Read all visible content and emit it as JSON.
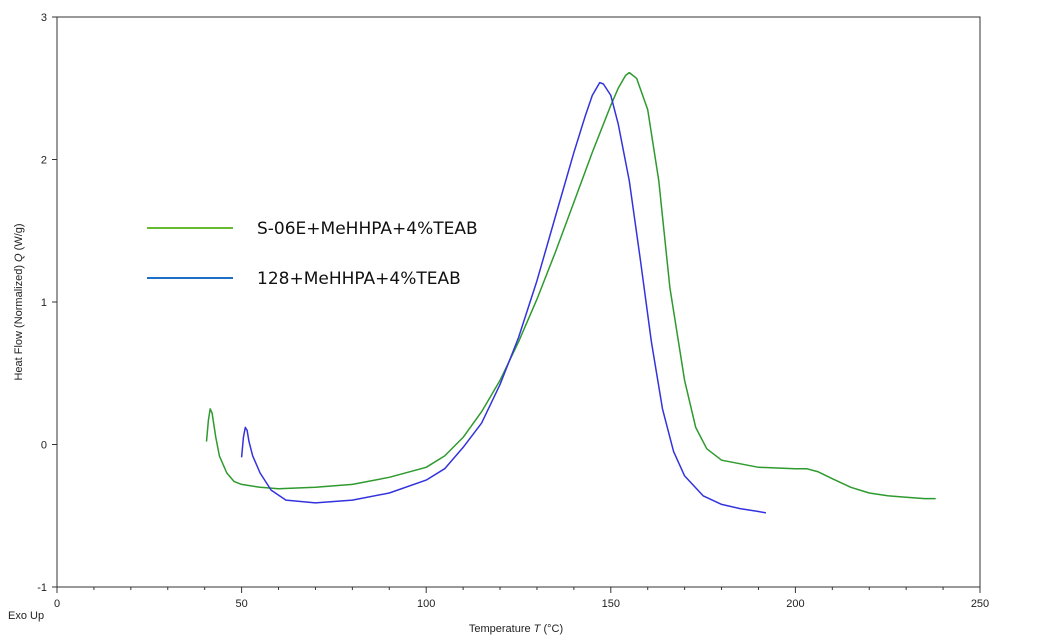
{
  "chart_data": {
    "type": "line",
    "xlabel": "Temperature",
    "xlabel_symbol": "T",
    "xlabel_unit": "(°C)",
    "ylabel": "Heat Flow (Normalized)",
    "ylabel_symbol": "Q",
    "ylabel_unit": "(W/g)",
    "corner_label": "Exo Up",
    "xlim": [
      0,
      250
    ],
    "ylim": [
      -1,
      3
    ],
    "x_ticks": [
      0,
      50,
      100,
      150,
      200,
      250
    ],
    "y_ticks": [
      -1,
      0,
      1,
      2,
      3
    ],
    "legend_position": "left-middle",
    "grid": false,
    "series": [
      {
        "name": "S-06E+MeHHPA+4%TEAB",
        "color": "#2e9a2e",
        "legend_color": "#66bb33",
        "points": [
          [
            40.5,
            0.02
          ],
          [
            41,
            0.17
          ],
          [
            41.5,
            0.25
          ],
          [
            42,
            0.22
          ],
          [
            43,
            0.05
          ],
          [
            44,
            -0.08
          ],
          [
            46,
            -0.2
          ],
          [
            48,
            -0.26
          ],
          [
            50,
            -0.28
          ],
          [
            55,
            -0.3
          ],
          [
            60,
            -0.31
          ],
          [
            70,
            -0.3
          ],
          [
            80,
            -0.28
          ],
          [
            90,
            -0.23
          ],
          [
            100,
            -0.16
          ],
          [
            105,
            -0.08
          ],
          [
            110,
            0.05
          ],
          [
            115,
            0.23
          ],
          [
            120,
            0.45
          ],
          [
            125,
            0.72
          ],
          [
            130,
            1.02
          ],
          [
            135,
            1.35
          ],
          [
            140,
            1.7
          ],
          [
            145,
            2.05
          ],
          [
            150,
            2.38
          ],
          [
            152,
            2.5
          ],
          [
            154,
            2.59
          ],
          [
            155,
            2.61
          ],
          [
            157,
            2.57
          ],
          [
            160,
            2.35
          ],
          [
            163,
            1.85
          ],
          [
            166,
            1.1
          ],
          [
            170,
            0.45
          ],
          [
            173,
            0.12
          ],
          [
            176,
            -0.03
          ],
          [
            180,
            -0.11
          ],
          [
            190,
            -0.16
          ],
          [
            200,
            -0.17
          ],
          [
            203,
            -0.17
          ],
          [
            206,
            -0.19
          ],
          [
            210,
            -0.24
          ],
          [
            215,
            -0.3
          ],
          [
            220,
            -0.34
          ],
          [
            225,
            -0.36
          ],
          [
            230,
            -0.37
          ],
          [
            235,
            -0.38
          ],
          [
            238,
            -0.38
          ]
        ]
      },
      {
        "name": "128+MeHHPA+4%TEAB",
        "color": "#3333dd",
        "legend_color": "#1f6fc6",
        "points": [
          [
            50,
            -0.09
          ],
          [
            50.5,
            0.05
          ],
          [
            51,
            0.12
          ],
          [
            51.5,
            0.1
          ],
          [
            52,
            0.02
          ],
          [
            53,
            -0.08
          ],
          [
            55,
            -0.2
          ],
          [
            58,
            -0.32
          ],
          [
            62,
            -0.39
          ],
          [
            70,
            -0.41
          ],
          [
            80,
            -0.39
          ],
          [
            90,
            -0.34
          ],
          [
            100,
            -0.25
          ],
          [
            105,
            -0.17
          ],
          [
            110,
            -0.02
          ],
          [
            115,
            0.15
          ],
          [
            120,
            0.42
          ],
          [
            125,
            0.75
          ],
          [
            130,
            1.15
          ],
          [
            135,
            1.6
          ],
          [
            140,
            2.05
          ],
          [
            143,
            2.3
          ],
          [
            145,
            2.45
          ],
          [
            147,
            2.54
          ],
          [
            148,
            2.53
          ],
          [
            150,
            2.45
          ],
          [
            152,
            2.25
          ],
          [
            155,
            1.85
          ],
          [
            158,
            1.3
          ],
          [
            161,
            0.72
          ],
          [
            164,
            0.25
          ],
          [
            167,
            -0.05
          ],
          [
            170,
            -0.22
          ],
          [
            175,
            -0.36
          ],
          [
            180,
            -0.42
          ],
          [
            185,
            -0.45
          ],
          [
            190,
            -0.47
          ],
          [
            192,
            -0.48
          ]
        ]
      }
    ]
  }
}
